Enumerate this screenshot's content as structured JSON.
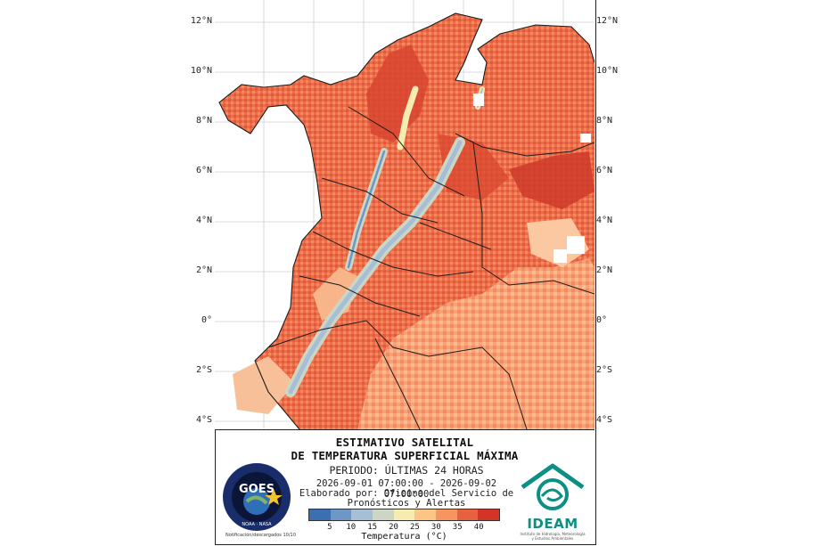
{
  "map": {
    "lat_labels": [
      "12°N",
      "10°N",
      "8°N",
      "6°N",
      "4°N",
      "2°N",
      "0°",
      "2°S",
      "4°S"
    ],
    "palette": [
      "#3b6fb0",
      "#6c97c7",
      "#a6bfd6",
      "#cdd6c4",
      "#f4ecb0",
      "#fbc586",
      "#f6955f",
      "#e8613e",
      "#d33427"
    ]
  },
  "panel": {
    "title_1": "ESTIMATIVO SATELITAL",
    "title_2": "DE TEMPERATURA SUPERFICIAL MÁXIMA",
    "period": "PERIODO: ÚLTIMAS 24 HORAS",
    "range": "2026-09-01 07:00:00 - 2026-09-02 07:00:00",
    "made_by_1": "Elaborado por: Oficina del Servicio de",
    "made_by_2": "Pronósticos y Alertas",
    "note": "Notificación/descargados 10/10"
  },
  "legend": {
    "ticks": [
      "5",
      "10",
      "15",
      "20",
      "25",
      "30",
      "35",
      "40"
    ],
    "caption": "Temperatura (°C)"
  },
  "logos": {
    "goes_text": "GOES",
    "goes_ring": "NOAA · NASA",
    "ideam_name": "IDEAM",
    "ideam_sub_1": "Instituto de Hidrología, Meteorología",
    "ideam_sub_2": "y Estudios Ambientales"
  }
}
